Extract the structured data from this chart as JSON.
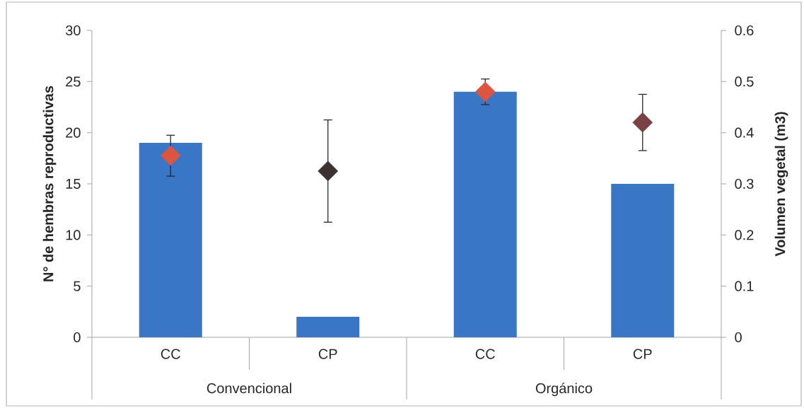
{
  "chart_data": {
    "type": "bar",
    "ylabel": "N° de hembras reproductivas",
    "y2label": "Volumen vegetal (m3)",
    "categories": [
      "CC",
      "CP",
      "CC",
      "CP"
    ],
    "annotations": [
      "Convencional",
      "Orgánico"
    ],
    "series": [
      {
        "color": "#3a76c6",
        "values": [
          19,
          2,
          24,
          15
        ]
      },
      {
        "type": "scatter",
        "axis": "y2",
        "marker": "diamond",
        "colors": [
          "#dc5541",
          "#3c3234",
          "#dc5541",
          "#7a4244"
        ],
        "values": [
          0.355,
          0.325,
          0.48,
          0.42
        ],
        "errors": [
          0.04,
          0.1,
          0.025,
          0.055
        ]
      }
    ],
    "ylim": [
      0,
      30
    ],
    "yticks": [
      0,
      5,
      10,
      15,
      20,
      25,
      30
    ],
    "y2lim": [
      0,
      0.6
    ],
    "y2ticks": [
      0,
      0.1,
      0.2,
      0.3,
      0.4,
      0.5,
      0.6
    ]
  }
}
